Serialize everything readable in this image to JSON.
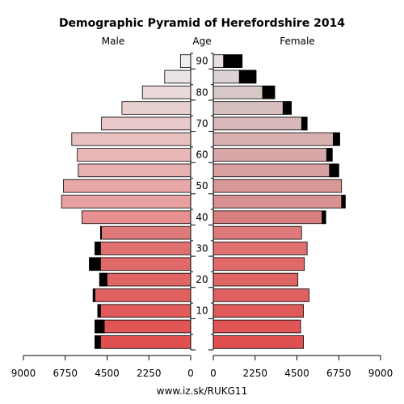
{
  "chart_data": {
    "type": "bar",
    "title": "Demographic Pyramid of Herefordshire 2014",
    "left_label": "Male",
    "center_label": "Age",
    "right_label": "Female",
    "footer": "www.iz.sk/RUKG11",
    "xlim": [
      0,
      9000
    ],
    "x_ticks": [
      "9000",
      "6750",
      "4500",
      "2250",
      "0"
    ],
    "x_ticks_right": [
      "0",
      "2250",
      "4500",
      "6750",
      "9000"
    ],
    "age_ticks": [
      "10",
      "20",
      "30",
      "40",
      "50",
      "60",
      "70",
      "80",
      "90"
    ],
    "age_groups": [
      "0-4",
      "5-9",
      "10-14",
      "15-19",
      "20-24",
      "25-29",
      "30-34",
      "35-39",
      "40-44",
      "45-49",
      "50-54",
      "55-59",
      "60-64",
      "65-69",
      "70-74",
      "75-79",
      "80-84",
      "85-89",
      "90+"
    ],
    "series": [
      {
        "name": "Male",
        "total": [
          5150,
          5150,
          5000,
          5250,
          4900,
          5450,
          5150,
          4850,
          5850,
          6950,
          6850,
          6050,
          6100,
          6400,
          4800,
          3700,
          2600,
          1400,
          550
        ],
        "dark": [
          300,
          500,
          150,
          100,
          400,
          600,
          300,
          50,
          0,
          0,
          0,
          0,
          0,
          0,
          0,
          0,
          0,
          0,
          0
        ],
        "colors": [
          "#e05050",
          "#e05555",
          "#e05a5a",
          "#e06060",
          "#e06565",
          "#e06a6a",
          "#e07070",
          "#e07a7a",
          "#e89090",
          "#e8a0a0",
          "#e8a8a8",
          "#e8b0b0",
          "#e8b8b8",
          "#e8c0c0",
          "#e8c8c8",
          "#e8d0d0",
          "#e8d8d8",
          "#ebe4e4",
          "#f0eded"
        ]
      },
      {
        "name": "Female",
        "total": [
          4850,
          4700,
          4850,
          5150,
          4550,
          4900,
          5050,
          4750,
          6050,
          7100,
          6900,
          6750,
          6400,
          6800,
          5050,
          4200,
          3300,
          2300,
          1550
        ],
        "dark": [
          0,
          0,
          0,
          0,
          0,
          0,
          0,
          0,
          200,
          200,
          0,
          500,
          300,
          350,
          300,
          450,
          650,
          900,
          1000
        ],
        "colors": [
          "#e05050",
          "#e05555",
          "#e05a5a",
          "#e06060",
          "#e06565",
          "#e06a6a",
          "#e07070",
          "#e07a7a",
          "#d88080",
          "#d89090",
          "#d89898",
          "#d8a0a0",
          "#d8a8a8",
          "#d8b0b0",
          "#d8b8b8",
          "#d8c0c0",
          "#d8c8c8",
          "#dcd4d4",
          "#e8e0e0"
        ]
      }
    ]
  }
}
